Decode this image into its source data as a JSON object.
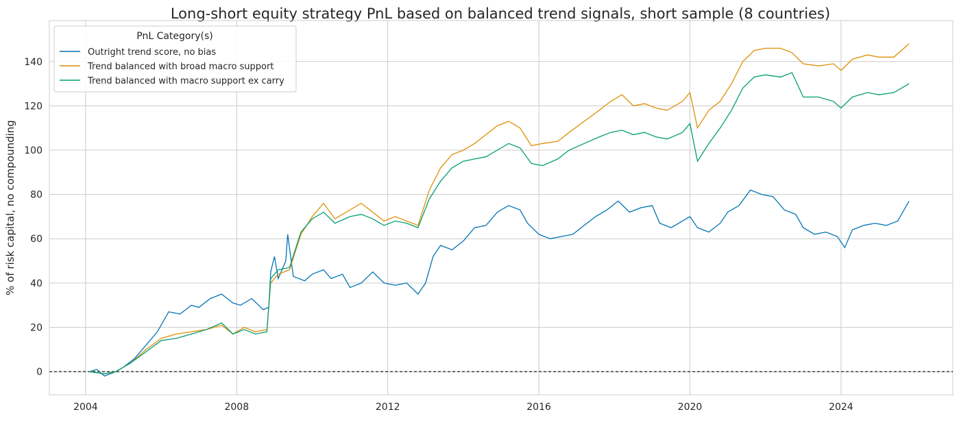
{
  "chart_data": {
    "type": "line",
    "title": "Long-short equity strategy PnL based on balanced trend signals, short sample (8 countries)",
    "xlabel": "",
    "ylabel": "% of risk capital, no compounding",
    "xlim": [
      2003.04,
      2026.96
    ],
    "ylim": [
      -10.5,
      158.5
    ],
    "xticks": [
      2004,
      2008,
      2012,
      2016,
      2020,
      2024
    ],
    "yticks": [
      0,
      20,
      40,
      60,
      80,
      100,
      120,
      140
    ],
    "grid": true,
    "legend": {
      "title": "PnL Category(s)",
      "placement": "top-left"
    },
    "reference_line": {
      "y": 0,
      "style": "dashed",
      "color": "#000000"
    },
    "series": [
      {
        "name": "Outright trend score, no bias",
        "color": "#0173b2",
        "x": [
          2004.1,
          2004.3,
          2004.5,
          2004.8,
          2005.0,
          2005.3,
          2005.6,
          2005.9,
          2006.2,
          2006.5,
          2006.8,
          2007.0,
          2007.3,
          2007.6,
          2007.9,
          2008.1,
          2008.4,
          2008.7,
          2008.85,
          2008.9,
          2009.0,
          2009.1,
          2009.3,
          2009.35,
          2009.5,
          2009.8,
          2010.0,
          2010.3,
          2010.5,
          2010.8,
          2011.0,
          2011.3,
          2011.6,
          2011.9,
          2012.2,
          2012.5,
          2012.8,
          2013.0,
          2013.2,
          2013.4,
          2013.7,
          2014.0,
          2014.3,
          2014.6,
          2014.9,
          2015.2,
          2015.5,
          2015.7,
          2016.0,
          2016.3,
          2016.6,
          2016.9,
          2017.2,
          2017.5,
          2017.8,
          2018.1,
          2018.4,
          2018.7,
          2019.0,
          2019.2,
          2019.5,
          2019.8,
          2020.0,
          2020.2,
          2020.5,
          2020.8,
          2021.0,
          2021.3,
          2021.6,
          2021.9,
          2022.2,
          2022.5,
          2022.8,
          2023.0,
          2023.3,
          2023.6,
          2023.9,
          2024.1,
          2024.3,
          2024.6,
          2024.9,
          2025.2,
          2025.5,
          2025.8
        ],
        "y": [
          0,
          1,
          -2,
          0,
          2,
          6,
          12,
          18,
          27,
          26,
          30,
          29,
          33,
          35,
          31,
          30,
          33,
          28,
          29,
          45,
          52,
          42,
          50,
          62,
          43,
          41,
          44,
          46,
          42,
          44,
          38,
          40,
          45,
          40,
          39,
          40,
          35,
          40,
          52,
          57,
          55,
          59,
          65,
          66,
          72,
          75,
          73,
          67,
          62,
          60,
          61,
          62,
          66,
          70,
          73,
          77,
          72,
          74,
          75,
          67,
          65,
          68,
          70,
          65,
          63,
          67,
          72,
          75,
          82,
          80,
          79,
          73,
          71,
          65,
          62,
          63,
          61,
          56,
          64,
          66,
          67,
          66,
          68,
          77
        ]
      },
      {
        "name": "Trend balanced with broad macro support",
        "color": "#de8f05",
        "x": [
          2004.1,
          2004.5,
          2004.8,
          2005.2,
          2005.6,
          2006.0,
          2006.4,
          2006.8,
          2007.2,
          2007.6,
          2007.9,
          2008.2,
          2008.5,
          2008.8,
          2008.9,
          2009.1,
          2009.4,
          2009.7,
          2010.0,
          2010.3,
          2010.6,
          2011.0,
          2011.3,
          2011.6,
          2011.9,
          2012.2,
          2012.5,
          2012.8,
          2013.1,
          2013.4,
          2013.7,
          2014.0,
          2014.3,
          2014.6,
          2014.9,
          2015.2,
          2015.5,
          2015.8,
          2016.1,
          2016.5,
          2016.8,
          2017.2,
          2017.6,
          2017.9,
          2018.2,
          2018.5,
          2018.8,
          2019.1,
          2019.4,
          2019.8,
          2020.0,
          2020.2,
          2020.5,
          2020.8,
          2021.1,
          2021.4,
          2021.7,
          2022.0,
          2022.4,
          2022.7,
          2023.0,
          2023.4,
          2023.8,
          2024.0,
          2024.3,
          2024.7,
          2025.0,
          2025.4,
          2025.8
        ],
        "y": [
          0,
          -1,
          0,
          4,
          10,
          15,
          17,
          18,
          19,
          21,
          17,
          20,
          18,
          19,
          40,
          44,
          46,
          62,
          70,
          76,
          69,
          73,
          76,
          72,
          68,
          70,
          68,
          66,
          82,
          92,
          98,
          100,
          103,
          107,
          111,
          113,
          110,
          102,
          103,
          104,
          108,
          113,
          118,
          122,
          125,
          120,
          121,
          119,
          118,
          122,
          126,
          110,
          118,
          122,
          130,
          140,
          145,
          146,
          146,
          144,
          139,
          138,
          139,
          136,
          141,
          143,
          142,
          142,
          148
        ]
      },
      {
        "name": "Trend balanced with macro support ex carry",
        "color": "#029e73",
        "x": [
          2004.1,
          2004.5,
          2004.8,
          2005.2,
          2005.6,
          2006.0,
          2006.4,
          2006.8,
          2007.2,
          2007.6,
          2007.9,
          2008.2,
          2008.5,
          2008.8,
          2008.9,
          2009.1,
          2009.4,
          2009.7,
          2010.0,
          2010.3,
          2010.6,
          2011.0,
          2011.3,
          2011.6,
          2011.9,
          2012.2,
          2012.5,
          2012.8,
          2013.1,
          2013.4,
          2013.7,
          2014.0,
          2014.3,
          2014.6,
          2014.9,
          2015.2,
          2015.5,
          2015.8,
          2016.1,
          2016.5,
          2016.8,
          2017.2,
          2017.6,
          2017.9,
          2018.2,
          2018.5,
          2018.8,
          2019.1,
          2019.4,
          2019.8,
          2020.0,
          2020.2,
          2020.5,
          2020.8,
          2021.1,
          2021.4,
          2021.7,
          2022.0,
          2022.4,
          2022.7,
          2023.0,
          2023.4,
          2023.8,
          2024.0,
          2024.3,
          2024.7,
          2025.0,
          2025.4,
          2025.8
        ],
        "y": [
          0,
          -1,
          0,
          4,
          9,
          14,
          15,
          17,
          19,
          22,
          17,
          19,
          17,
          18,
          42,
          46,
          47,
          63,
          69,
          72,
          67,
          70,
          71,
          69,
          66,
          68,
          67,
          65,
          78,
          86,
          92,
          95,
          96,
          97,
          100,
          103,
          101,
          94,
          93,
          96,
          100,
          103,
          106,
          108,
          109,
          107,
          108,
          106,
          105,
          108,
          112,
          95,
          103,
          110,
          118,
          128,
          133,
          134,
          133,
          135,
          124,
          124,
          122,
          119,
          124,
          126,
          125,
          126,
          130
        ]
      }
    ]
  }
}
